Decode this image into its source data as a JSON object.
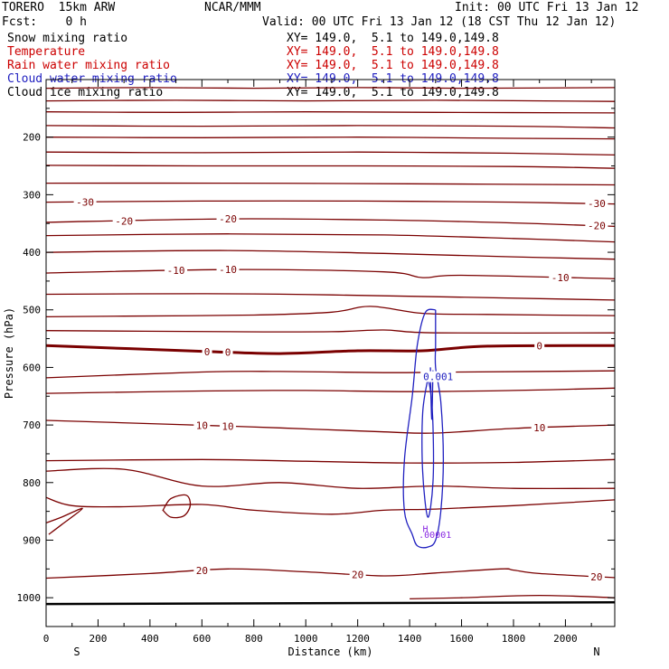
{
  "header": {
    "model": "TORERO  15km ARW",
    "center": "NCAR/MMM",
    "init": "Init: 00 UTC Fri 13 Jan 12",
    "fcst": "Fcst:    0 h",
    "valid": "Valid: 00 UTC Fri 13 Jan 12 (18 CST Thu 12 Jan 12)"
  },
  "legend": [
    {
      "name": "Snow mixing ratio",
      "xy": "XY= 149.0,  5.1 to 149.0,149.8",
      "name_color": "#000000",
      "xy_color": "#000000"
    },
    {
      "name": "Temperature",
      "xy": "XY= 149.0,  5.1 to 149.0,149.8",
      "name_color": "#cc0000",
      "xy_color": "#cc0000"
    },
    {
      "name": "Rain water mixing ratio",
      "xy": "XY= 149.0,  5.1 to 149.0,149.8",
      "name_color": "#cc0000",
      "xy_color": "#cc0000"
    },
    {
      "name": "Cloud water mixing ratio",
      "xy": "XY= 149.0,  5.1 to 149.0,149.8",
      "name_color": "#2020c0",
      "xy_color": "#2020c0"
    },
    {
      "name": "Cloud ice mixing ratio",
      "xy": "XY= 149.0,  5.1 to 149.0,149.8",
      "name_color": "#000000",
      "xy_color": "#000000"
    }
  ],
  "colors": {
    "temperature": "#7a0000",
    "cloud_water": "#2020c0",
    "rain_markers": "#8a2be2",
    "axis": "#000000"
  },
  "chart_data": {
    "type": "contour",
    "xlabel": "Distance (km)",
    "ylabel": "Pressure (hPa)",
    "xlim": [
      0,
      2190
    ],
    "ylim": [
      1050,
      100
    ],
    "x_ticks": [
      0,
      200,
      400,
      600,
      800,
      1000,
      1200,
      1400,
      1600,
      1800,
      2000
    ],
    "y_ticks": [
      200,
      300,
      400,
      500,
      600,
      700,
      800,
      900,
      1000
    ],
    "x_end_labels": {
      "left": "S",
      "right": "N"
    },
    "temperature_contours": [
      {
        "points": [
          [
            0,
            115
          ],
          [
            400,
            114
          ],
          [
            800,
            115
          ],
          [
            1200,
            114
          ],
          [
            1600,
            115
          ],
          [
            2190,
            114
          ]
        ]
      },
      {
        "points": [
          [
            0,
            137
          ],
          [
            500,
            136
          ],
          [
            1000,
            137
          ],
          [
            1500,
            136
          ],
          [
            2190,
            138
          ]
        ]
      },
      {
        "points": [
          [
            0,
            156
          ],
          [
            500,
            157
          ],
          [
            1000,
            156
          ],
          [
            1500,
            157
          ],
          [
            2190,
            158
          ]
        ]
      },
      {
        "points": [
          [
            0,
            180
          ],
          [
            600,
            181
          ],
          [
            1200,
            180
          ],
          [
            1800,
            181
          ],
          [
            2190,
            184
          ]
        ]
      },
      {
        "points": [
          [
            0,
            200
          ],
          [
            600,
            201
          ],
          [
            1200,
            200
          ],
          [
            1800,
            202
          ],
          [
            2190,
            203
          ]
        ]
      },
      {
        "points": [
          [
            0,
            226
          ],
          [
            600,
            227
          ],
          [
            1200,
            226
          ],
          [
            1800,
            228
          ],
          [
            2190,
            231
          ]
        ]
      },
      {
        "points": [
          [
            0,
            249
          ],
          [
            600,
            250
          ],
          [
            1200,
            250
          ],
          [
            1800,
            251
          ],
          [
            2190,
            254
          ]
        ]
      },
      {
        "points": [
          [
            0,
            280
          ],
          [
            700,
            280
          ],
          [
            1400,
            281
          ],
          [
            2190,
            283
          ]
        ]
      },
      {
        "level": -30,
        "points": [
          [
            0,
            313
          ],
          [
            600,
            311
          ],
          [
            1200,
            311
          ],
          [
            1800,
            313
          ],
          [
            2190,
            316
          ]
        ]
      },
      {
        "level": -20,
        "points": [
          [
            0,
            348
          ],
          [
            700,
            342
          ],
          [
            1300,
            344
          ],
          [
            1800,
            349
          ],
          [
            2190,
            355
          ]
        ]
      },
      {
        "points": [
          [
            0,
            371
          ],
          [
            700,
            368
          ],
          [
            1300,
            370
          ],
          [
            1800,
            376
          ],
          [
            2190,
            382
          ]
        ]
      },
      {
        "points": [
          [
            0,
            400
          ],
          [
            700,
            397
          ],
          [
            1300,
            402
          ],
          [
            1800,
            408
          ],
          [
            2190,
            412
          ]
        ]
      },
      {
        "level": -10,
        "points": [
          [
            0,
            436
          ],
          [
            700,
            430
          ],
          [
            1300,
            434
          ],
          [
            1450,
            444
          ],
          [
            1600,
            440
          ],
          [
            2190,
            446
          ]
        ]
      },
      {
        "points": [
          [
            0,
            473
          ],
          [
            600,
            472
          ],
          [
            1100,
            474
          ],
          [
            2190,
            483
          ]
        ]
      },
      {
        "points": [
          [
            0,
            512
          ],
          [
            300,
            511
          ],
          [
            800,
            509
          ],
          [
            1100,
            504
          ],
          [
            1250,
            494
          ],
          [
            1450,
            506
          ],
          [
            1700,
            508
          ],
          [
            2190,
            510
          ]
        ]
      },
      {
        "points": [
          [
            0,
            536
          ],
          [
            700,
            538
          ],
          [
            1100,
            538
          ],
          [
            1300,
            535
          ],
          [
            1500,
            540
          ],
          [
            2190,
            540
          ]
        ]
      },
      {
        "level": 0,
        "bold": true,
        "points": [
          [
            0,
            562
          ],
          [
            600,
            572
          ],
          [
            900,
            576
          ],
          [
            1200,
            571
          ],
          [
            1450,
            571
          ],
          [
            1700,
            563
          ],
          [
            2190,
            562
          ]
        ]
      },
      {
        "points": [
          [
            0,
            618
          ],
          [
            600,
            608
          ],
          [
            900,
            607
          ],
          [
            1300,
            609
          ],
          [
            1600,
            608
          ],
          [
            2190,
            606
          ]
        ]
      },
      {
        "points": [
          [
            0,
            645
          ],
          [
            600,
            641
          ],
          [
            1000,
            640
          ],
          [
            1400,
            642
          ],
          [
            1800,
            640
          ],
          [
            2190,
            636
          ]
        ]
      },
      {
        "level": 10,
        "points": [
          [
            0,
            692
          ],
          [
            500,
            699
          ],
          [
            900,
            705
          ],
          [
            1300,
            712
          ],
          [
            1500,
            714
          ],
          [
            1800,
            706
          ],
          [
            2190,
            700
          ]
        ]
      },
      {
        "points": [
          [
            0,
            762
          ],
          [
            600,
            760
          ],
          [
            1000,
            763
          ],
          [
            1400,
            766
          ],
          [
            1800,
            765
          ],
          [
            2190,
            760
          ]
        ]
      },
      {
        "points": [
          [
            0,
            780
          ],
          [
            300,
            777
          ],
          [
            600,
            806
          ],
          [
            900,
            800
          ],
          [
            1200,
            810
          ],
          [
            1500,
            806
          ],
          [
            1800,
            810
          ],
          [
            2190,
            810
          ]
        ]
      },
      {
        "points": [
          [
            0,
            826
          ],
          [
            100,
            840
          ],
          [
            300,
            842
          ],
          [
            600,
            838
          ],
          [
            800,
            848
          ],
          [
            1100,
            855
          ],
          [
            1300,
            848
          ],
          [
            1500,
            846
          ],
          [
            1800,
            840
          ],
          [
            2190,
            830
          ]
        ]
      },
      {
        "level": 20,
        "points": [
          [
            0,
            966
          ],
          [
            400,
            958
          ],
          [
            700,
            950
          ],
          [
            1000,
            955
          ],
          [
            1300,
            962
          ],
          [
            1500,
            957
          ],
          [
            1750,
            950
          ],
          [
            1800,
            952
          ],
          [
            1900,
            958
          ],
          [
            2190,
            965
          ]
        ]
      },
      {
        "points": [
          [
            1400,
            1002
          ],
          [
            1600,
            1000
          ],
          [
            1900,
            996
          ],
          [
            2190,
            1000
          ]
        ]
      }
    ],
    "cloud_water_contours": [
      {
        "level": 0.001,
        "points": [
          [
            1500,
            500
          ],
          [
            1460,
            505
          ],
          [
            1430,
            560
          ],
          [
            1410,
            650
          ],
          [
            1380,
            760
          ],
          [
            1380,
            850
          ],
          [
            1410,
            890
          ],
          [
            1430,
            910
          ],
          [
            1470,
            912
          ],
          [
            1500,
            900
          ],
          [
            1520,
            850
          ],
          [
            1530,
            760
          ],
          [
            1520,
            660
          ],
          [
            1500,
            600
          ],
          [
            1500,
            560
          ],
          [
            1500,
            500
          ]
        ]
      },
      {
        "points": [
          [
            1470,
            620
          ],
          [
            1450,
            680
          ],
          [
            1450,
            780
          ],
          [
            1470,
            860
          ],
          [
            1490,
            800
          ],
          [
            1490,
            700
          ],
          [
            1480,
            640
          ],
          [
            1470,
            620
          ]
        ]
      },
      {
        "points": [
          [
            1480,
            600
          ],
          [
            1485,
            690
          ],
          [
            1490,
            605
          ]
        ]
      }
    ]
  }
}
